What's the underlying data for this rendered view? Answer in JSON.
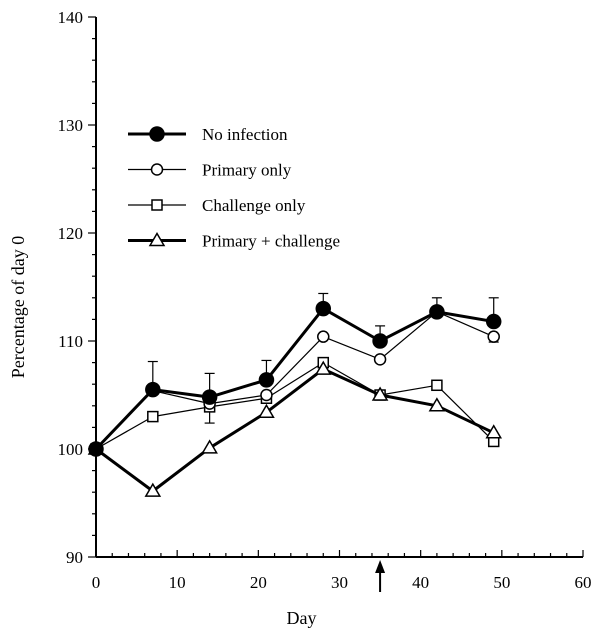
{
  "chart_data": {
    "type": "line",
    "xlabel": "Day",
    "ylabel": "Percentage of day 0",
    "xlim": [
      0,
      60
    ],
    "ylim": [
      90,
      140
    ],
    "xticks": [
      0,
      10,
      20,
      30,
      40,
      50,
      60
    ],
    "yticks": [
      90,
      100,
      110,
      120,
      130,
      140
    ],
    "grid": false,
    "legend_position": "upper-left",
    "annotation": {
      "type": "arrow",
      "x": 35,
      "direction": "up"
    },
    "series": [
      {
        "name": "No infection",
        "marker": "filled-circle",
        "line_weight": "heavy",
        "x": [
          0,
          7,
          14,
          21,
          28,
          35,
          42,
          49
        ],
        "y": [
          100,
          105.5,
          104.8,
          106.4,
          113,
          110,
          112.7,
          111.8
        ],
        "error_upper": [
          0,
          2.6,
          2.2,
          1.8,
          1.4,
          1.4,
          1.3,
          2.2
        ]
      },
      {
        "name": "Primary only",
        "marker": "open-circle",
        "line_weight": "thin",
        "x": [
          0,
          7,
          14,
          21,
          28,
          35,
          42,
          49
        ],
        "y": [
          100,
          105.4,
          104.2,
          105,
          110.4,
          108.3,
          112.7,
          110.4
        ],
        "error_lower": [
          0,
          0,
          0,
          0,
          0,
          0,
          0,
          0.5
        ]
      },
      {
        "name": "Challenge only",
        "marker": "open-square",
        "line_weight": "thin",
        "x": [
          0,
          7,
          14,
          21,
          28,
          35,
          42,
          49
        ],
        "y": [
          100,
          103,
          103.9,
          104.7,
          108,
          105,
          105.9,
          100.7
        ],
        "error_lower": [
          0,
          0,
          1.5,
          0,
          0.8,
          0,
          0,
          0
        ]
      },
      {
        "name": "Primary + challenge",
        "marker": "open-triangle",
        "line_weight": "heavy",
        "x": [
          0,
          7,
          14,
          21,
          28,
          35,
          42,
          49
        ],
        "y": [
          100,
          96.1,
          100.1,
          103.4,
          107.4,
          105,
          104,
          101.5
        ]
      }
    ]
  }
}
